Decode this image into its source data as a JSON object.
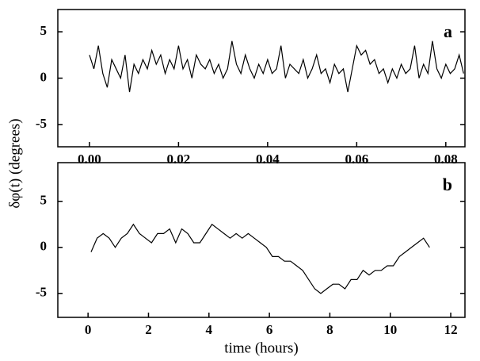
{
  "chart_data": [
    {
      "type": "line",
      "annotation": "a",
      "ylabel": "δφ(t) (degrees)",
      "x": [
        0.0,
        0.001,
        0.002,
        0.003,
        0.004,
        0.005,
        0.006,
        0.007,
        0.008,
        0.009,
        0.01,
        0.011,
        0.012,
        0.013,
        0.014,
        0.015,
        0.016,
        0.017,
        0.018,
        0.019,
        0.02,
        0.021,
        0.022,
        0.023,
        0.024,
        0.025,
        0.026,
        0.027,
        0.028,
        0.029,
        0.03,
        0.031,
        0.032,
        0.033,
        0.034,
        0.035,
        0.036,
        0.037,
        0.038,
        0.039,
        0.04,
        0.041,
        0.042,
        0.043,
        0.044,
        0.045,
        0.046,
        0.047,
        0.048,
        0.049,
        0.05,
        0.051,
        0.052,
        0.053,
        0.054,
        0.055,
        0.056,
        0.057,
        0.058,
        0.059,
        0.06,
        0.061,
        0.062,
        0.063,
        0.064,
        0.065,
        0.066,
        0.067,
        0.068,
        0.069,
        0.07,
        0.071,
        0.072,
        0.073,
        0.074,
        0.075,
        0.076,
        0.077,
        0.078,
        0.079,
        0.08,
        0.081,
        0.082,
        0.083,
        0.084
      ],
      "series": [
        {
          "color": "#000000",
          "values": [
            2.5,
            1.0,
            3.5,
            0.5,
            -1.0,
            2.0,
            1.0,
            0.0,
            2.5,
            -1.5,
            1.5,
            0.5,
            2.0,
            1.0,
            3.0,
            1.5,
            2.5,
            0.5,
            2.0,
            1.0,
            3.5,
            1.0,
            2.0,
            0.0,
            2.5,
            1.5,
            1.0,
            2.0,
            0.5,
            1.5,
            0.0,
            1.0,
            4.0,
            1.5,
            0.5,
            2.5,
            1.0,
            0.0,
            1.5,
            0.5,
            2.0,
            0.5,
            1.0,
            3.5,
            0.0,
            1.5,
            1.0,
            0.5,
            2.0,
            0.0,
            1.0,
            2.5,
            0.5,
            1.0,
            -0.5,
            1.5,
            0.5,
            1.0,
            -1.5,
            1.0,
            3.5,
            2.5,
            3.0,
            1.5,
            2.0,
            0.5,
            1.0,
            -0.5,
            1.0,
            0.0,
            1.5,
            0.5,
            1.0,
            3.5,
            0.0,
            1.5,
            0.5,
            4.0,
            1.0,
            0.0,
            1.5,
            0.5,
            1.0,
            2.5,
            0.5
          ]
        }
      ],
      "xlim": [
        -0.0071,
        0.0843
      ],
      "ylim": [
        -7.4,
        7.4
      ],
      "xticks": [
        {
          "value": 0,
          "label": "0.00"
        },
        {
          "value": 0.02,
          "label": "0.02"
        },
        {
          "value": 0.04,
          "label": "0.04"
        },
        {
          "value": 0.06,
          "label": "0.06"
        },
        {
          "value": 0.08,
          "label": "0.08"
        }
      ],
      "yticks": [
        -5,
        0,
        5
      ]
    },
    {
      "type": "line",
      "annotation": "b",
      "xlabel": "time (hours)",
      "x": [
        0.1,
        0.3,
        0.5,
        0.7,
        0.9,
        1.1,
        1.3,
        1.5,
        1.7,
        1.9,
        2.1,
        2.3,
        2.5,
        2.7,
        2.9,
        3.1,
        3.3,
        3.5,
        3.7,
        3.9,
        4.1,
        4.3,
        4.5,
        4.7,
        4.9,
        5.1,
        5.3,
        5.5,
        5.7,
        5.9,
        6.1,
        6.3,
        6.5,
        6.7,
        6.9,
        7.1,
        7.3,
        7.5,
        7.7,
        7.9,
        8.1,
        8.3,
        8.5,
        8.7,
        8.9,
        9.1,
        9.3,
        9.5,
        9.7,
        9.9,
        10.1,
        10.3,
        10.5,
        10.7,
        10.9,
        11.1,
        11.3
      ],
      "series": [
        {
          "color": "#000000",
          "values": [
            -0.5,
            1.0,
            1.5,
            1.0,
            0.0,
            1.0,
            1.5,
            2.5,
            1.5,
            1.0,
            0.5,
            1.5,
            1.5,
            2.0,
            0.5,
            2.0,
            1.5,
            0.5,
            0.5,
            1.5,
            2.5,
            2.0,
            1.5,
            1.0,
            1.5,
            1.0,
            1.5,
            1.0,
            0.5,
            0.0,
            -1.0,
            -1.0,
            -1.5,
            -1.5,
            -2.0,
            -2.5,
            -3.5,
            -4.5,
            -5.0,
            -4.5,
            -4.0,
            -4.0,
            -4.5,
            -3.5,
            -3.5,
            -2.5,
            -3.0,
            -2.5,
            -2.5,
            -2.0,
            -2.0,
            -1.0,
            -0.5,
            0.0,
            0.5,
            1.0,
            0.0
          ]
        }
      ],
      "xlim": [
        -1.0,
        12.47
      ],
      "ylim": [
        -7.6,
        9.2
      ],
      "xticks": [
        0,
        2,
        4,
        6,
        8,
        10,
        12
      ],
      "yticks": [
        -5,
        0,
        5
      ]
    }
  ]
}
